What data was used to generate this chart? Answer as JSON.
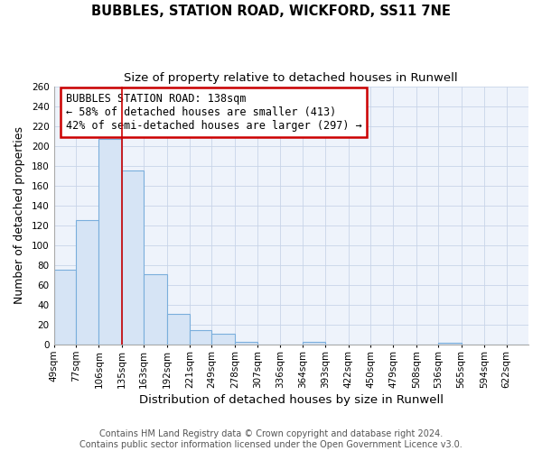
{
  "title": "BUBBLES, STATION ROAD, WICKFORD, SS11 7NE",
  "subtitle": "Size of property relative to detached houses in Runwell",
  "xlabel": "Distribution of detached houses by size in Runwell",
  "ylabel": "Number of detached properties",
  "bin_labels": [
    "49sqm",
    "77sqm",
    "106sqm",
    "135sqm",
    "163sqm",
    "192sqm",
    "221sqm",
    "249sqm",
    "278sqm",
    "307sqm",
    "336sqm",
    "364sqm",
    "393sqm",
    "422sqm",
    "450sqm",
    "479sqm",
    "508sqm",
    "536sqm",
    "565sqm",
    "594sqm",
    "622sqm"
  ],
  "bar_values": [
    76,
    125,
    207,
    175,
    71,
    31,
    15,
    11,
    3,
    0,
    0,
    3,
    0,
    0,
    0,
    0,
    0,
    2,
    0,
    0,
    0
  ],
  "bar_color": "#d6e4f5",
  "bar_edge_color": "#7aaedc",
  "annotation_line1": "BUBBLES STATION ROAD: 138sqm",
  "annotation_line2": "← 58% of detached houses are smaller (413)",
  "annotation_line3": "42% of semi-detached houses are larger (297) →",
  "annotation_box_edge": "#cc0000",
  "vline_x": 135,
  "vline_color": "#cc0000",
  "bin_edges_sqm": [
    49,
    77,
    106,
    135,
    163,
    192,
    221,
    249,
    278,
    307,
    336,
    364,
    393,
    422,
    450,
    479,
    508,
    536,
    565,
    594,
    622
  ],
  "bin_width": 28,
  "ylim": [
    0,
    260
  ],
  "yticks": [
    0,
    20,
    40,
    60,
    80,
    100,
    120,
    140,
    160,
    180,
    200,
    220,
    240,
    260
  ],
  "grid_color": "#c8d4e8",
  "background_color": "#ffffff",
  "plot_bg_color": "#eef3fb",
  "footer_text": "Contains HM Land Registry data © Crown copyright and database right 2024.\nContains public sector information licensed under the Open Government Licence v3.0.",
  "title_fontsize": 10.5,
  "subtitle_fontsize": 9.5,
  "xlabel_fontsize": 9.5,
  "ylabel_fontsize": 9,
  "tick_fontsize": 7.5,
  "footer_fontsize": 7,
  "annot_fontsize": 8.5
}
